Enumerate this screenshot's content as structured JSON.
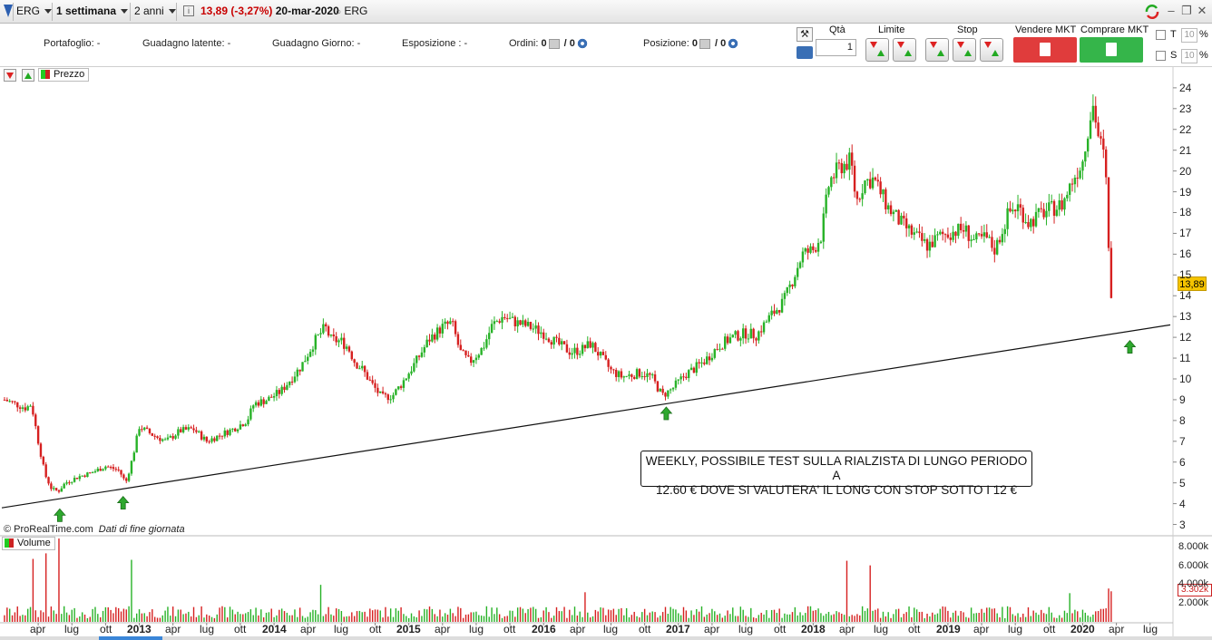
{
  "toolbar": {
    "ticker": "ERG",
    "period": "1 settimana",
    "range": "2 anni",
    "price": "13,89",
    "change": "(-3,27%)",
    "date": "20-mar-2020",
    "instrument": "ERG",
    "icons": [
      "window-icon",
      "info-icon",
      "refresh-icon",
      "minimize-icon",
      "restore-icon",
      "close-icon"
    ]
  },
  "info": {
    "portfolio_label": "Portafoglio:",
    "portfolio_value": "-",
    "latent_label": "Guadagno latente:",
    "latent_value": "-",
    "day_label": "Guadagno Giorno:",
    "day_value": "-",
    "exposure_label": "Esposizione :",
    "exposure_value": "-",
    "orders_label": "Ordini:",
    "orders_a": "0",
    "orders_b": "/ 0",
    "position_label": "Posizione:",
    "position_a": "0",
    "position_b": "/ 0"
  },
  "trading": {
    "qty_label": "Qtà",
    "qty_value": "1",
    "limit_label": "Limite",
    "stop_label": "Stop",
    "sell_label": "Vendere MKT",
    "buy_label": "Comprare MKT",
    "check_t": "T",
    "check_s": "S",
    "pct_value": "10",
    "pct_symbol": "%",
    "sell_color": "#e03c3c",
    "buy_color": "#35b54a"
  },
  "panels": {
    "price_label": "Prezzo",
    "volume_label": "Volume",
    "copyright": "© ProRealTime.com",
    "eod": "Dati di fine giornata",
    "last_price": "13,89",
    "last_volume": "3.302k"
  },
  "annotation": {
    "line1": "WEEKLY, POSSIBILE TEST SULLA RIALZISTA DI LUNGO PERIODO A",
    "line2": "12.60 € DOVE SI VALUTERA' IL LONG CON STOP SOTTO I 12 €"
  },
  "chart_data": {
    "type": "candlestick",
    "title": "",
    "frequency": "weekly",
    "ylim": [
      2.5,
      24.3
    ],
    "y_ticks": [
      3,
      4,
      5,
      6,
      7,
      8,
      9,
      10,
      11,
      12,
      13,
      14,
      15,
      16,
      17,
      18,
      19,
      20,
      21,
      22,
      23,
      24
    ],
    "x_ticks": [
      {
        "label": "apr",
        "t": 2012.25,
        "bold": false
      },
      {
        "label": "lug",
        "t": 2012.5,
        "bold": false
      },
      {
        "label": "ott",
        "t": 2012.75,
        "bold": false
      },
      {
        "label": "2013",
        "t": 2013.0,
        "bold": true
      },
      {
        "label": "apr",
        "t": 2013.25,
        "bold": false
      },
      {
        "label": "lug",
        "t": 2013.5,
        "bold": false
      },
      {
        "label": "ott",
        "t": 2013.75,
        "bold": false
      },
      {
        "label": "2014",
        "t": 2014.0,
        "bold": true
      },
      {
        "label": "apr",
        "t": 2014.25,
        "bold": false
      },
      {
        "label": "lug",
        "t": 2014.5,
        "bold": false
      },
      {
        "label": "ott",
        "t": 2014.75,
        "bold": false
      },
      {
        "label": "2015",
        "t": 2015.0,
        "bold": true
      },
      {
        "label": "apr",
        "t": 2015.25,
        "bold": false
      },
      {
        "label": "lug",
        "t": 2015.5,
        "bold": false
      },
      {
        "label": "ott",
        "t": 2015.75,
        "bold": false
      },
      {
        "label": "2016",
        "t": 2016.0,
        "bold": true
      },
      {
        "label": "apr",
        "t": 2016.25,
        "bold": false
      },
      {
        "label": "lug",
        "t": 2016.5,
        "bold": false
      },
      {
        "label": "ott",
        "t": 2016.75,
        "bold": false
      },
      {
        "label": "2017",
        "t": 2017.0,
        "bold": true
      },
      {
        "label": "apr",
        "t": 2017.25,
        "bold": false
      },
      {
        "label": "lug",
        "t": 2017.5,
        "bold": false
      },
      {
        "label": "ott",
        "t": 2017.75,
        "bold": false
      },
      {
        "label": "2018",
        "t": 2018.0,
        "bold": true
      },
      {
        "label": "apr",
        "t": 2018.25,
        "bold": false
      },
      {
        "label": "lug",
        "t": 2018.5,
        "bold": false
      },
      {
        "label": "ott",
        "t": 2018.75,
        "bold": false
      },
      {
        "label": "2019",
        "t": 2019.0,
        "bold": true
      },
      {
        "label": "apr",
        "t": 2019.25,
        "bold": false
      },
      {
        "label": "lug",
        "t": 2019.5,
        "bold": false
      },
      {
        "label": "ott",
        "t": 2019.75,
        "bold": false
      },
      {
        "label": "2020",
        "t": 2020.0,
        "bold": true
      },
      {
        "label": "apr",
        "t": 2020.25,
        "bold": false
      },
      {
        "label": "lug",
        "t": 2020.5,
        "bold": false
      }
    ],
    "x_range": [
      2011.98,
      2020.67
    ],
    "close_path": [
      [
        2012.0,
        9.0
      ],
      [
        2012.08,
        8.8
      ],
      [
        2012.16,
        8.6
      ],
      [
        2012.2,
        8.8
      ],
      [
        2012.25,
        7.0
      ],
      [
        2012.3,
        5.4
      ],
      [
        2012.35,
        4.7
      ],
      [
        2012.4,
        4.6
      ],
      [
        2012.45,
        5.0
      ],
      [
        2012.55,
        5.3
      ],
      [
        2012.65,
        5.5
      ],
      [
        2012.75,
        5.8
      ],
      [
        2012.85,
        5.6
      ],
      [
        2012.9,
        5.0
      ],
      [
        2012.95,
        6.2
      ],
      [
        2013.0,
        7.7
      ],
      [
        2013.1,
        7.3
      ],
      [
        2013.2,
        7.0
      ],
      [
        2013.3,
        7.5
      ],
      [
        2013.4,
        7.6
      ],
      [
        2013.5,
        7.0
      ],
      [
        2013.6,
        7.3
      ],
      [
        2013.7,
        7.6
      ],
      [
        2013.8,
        8.0
      ],
      [
        2013.85,
        8.8
      ],
      [
        2013.95,
        9.0
      ],
      [
        2014.05,
        9.4
      ],
      [
        2014.15,
        10.2
      ],
      [
        2014.2,
        10.6
      ],
      [
        2014.3,
        11.8
      ],
      [
        2014.38,
        12.5
      ],
      [
        2014.42,
        11.9
      ],
      [
        2014.5,
        11.8
      ],
      [
        2014.55,
        11.5
      ],
      [
        2014.6,
        10.8
      ],
      [
        2014.65,
        10.5
      ],
      [
        2014.72,
        9.8
      ],
      [
        2014.8,
        9.1
      ],
      [
        2014.88,
        9.2
      ],
      [
        2014.95,
        9.8
      ],
      [
        2015.05,
        10.8
      ],
      [
        2015.15,
        11.9
      ],
      [
        2015.25,
        12.5
      ],
      [
        2015.32,
        12.7
      ],
      [
        2015.38,
        11.3
      ],
      [
        2015.45,
        10.8
      ],
      [
        2015.55,
        11.5
      ],
      [
        2015.62,
        12.6
      ],
      [
        2015.7,
        13.0
      ],
      [
        2015.8,
        12.7
      ],
      [
        2015.9,
        12.5
      ],
      [
        2016.0,
        12.2
      ],
      [
        2016.1,
        11.7
      ],
      [
        2016.2,
        11.3
      ],
      [
        2016.28,
        11.4
      ],
      [
        2016.35,
        11.7
      ],
      [
        2016.42,
        11.1
      ],
      [
        2016.5,
        10.4
      ],
      [
        2016.58,
        10.1
      ],
      [
        2016.66,
        10.2
      ],
      [
        2016.72,
        10.3
      ],
      [
        2016.8,
        10.1
      ],
      [
        2016.88,
        9.2
      ],
      [
        2016.95,
        9.5
      ],
      [
        2017.05,
        10.2
      ],
      [
        2017.12,
        10.5
      ],
      [
        2017.2,
        10.9
      ],
      [
        2017.3,
        11.6
      ],
      [
        2017.4,
        12.0
      ],
      [
        2017.5,
        12.2
      ],
      [
        2017.58,
        12.1
      ],
      [
        2017.68,
        13.0
      ],
      [
        2017.78,
        13.7
      ],
      [
        2017.85,
        14.8
      ],
      [
        2017.92,
        16.0
      ],
      [
        2018.0,
        16.2
      ],
      [
        2018.06,
        16.9
      ],
      [
        2018.12,
        19.5
      ],
      [
        2018.2,
        20.2
      ],
      [
        2018.28,
        20.5
      ],
      [
        2018.32,
        18.5
      ],
      [
        2018.38,
        19.5
      ],
      [
        2018.45,
        19.6
      ],
      [
        2018.55,
        18.3
      ],
      [
        2018.65,
        17.5
      ],
      [
        2018.75,
        16.9
      ],
      [
        2018.85,
        16.4
      ],
      [
        2018.95,
        16.9
      ],
      [
        2019.05,
        17.1
      ],
      [
        2019.12,
        17.2
      ],
      [
        2019.2,
        16.6
      ],
      [
        2019.28,
        16.8
      ],
      [
        2019.35,
        16.2
      ],
      [
        2019.45,
        18.0
      ],
      [
        2019.52,
        18.3
      ],
      [
        2019.6,
        17.5
      ],
      [
        2019.7,
        18.0
      ],
      [
        2019.78,
        18.2
      ],
      [
        2019.85,
        18.4
      ],
      [
        2019.92,
        19.5
      ],
      [
        2020.0,
        20.5
      ],
      [
        2020.05,
        22.5
      ],
      [
        2020.08,
        23.2
      ],
      [
        2020.12,
        21.5
      ],
      [
        2020.15,
        21.0
      ],
      [
        2020.18,
        19.0
      ],
      [
        2020.2,
        14.3
      ],
      [
        2020.215,
        13.89
      ]
    ],
    "trendline": {
      "x1": 2011.98,
      "y1": 3.8,
      "x2": 2020.65,
      "y2": 12.6
    },
    "arrows": [
      {
        "t": 2012.41,
        "y": 3.4
      },
      {
        "t": 2012.88,
        "y": 4.0
      },
      {
        "t": 2016.91,
        "y": 8.3
      },
      {
        "t": 2020.35,
        "y": 11.5
      }
    ],
    "volume_ticks": [
      {
        "label": "8.000k",
        "v": 8000
      },
      {
        "label": "6.000k",
        "v": 6000
      },
      {
        "label": "4.000k",
        "v": 4000
      },
      {
        "label": "2.000k",
        "v": 2000
      }
    ],
    "volume_max": 9200,
    "volume_spikes": [
      {
        "t": 2012.22,
        "v": 6800
      },
      {
        "t": 2012.3,
        "v": 7400
      },
      {
        "t": 2012.41,
        "v": 9000
      },
      {
        "t": 2012.94,
        "v": 6700
      },
      {
        "t": 2014.35,
        "v": 4000
      },
      {
        "t": 2016.3,
        "v": 3200
      },
      {
        "t": 2018.25,
        "v": 6600
      },
      {
        "t": 2018.42,
        "v": 6100
      },
      {
        "t": 2019.9,
        "v": 3100
      },
      {
        "t": 2020.2,
        "v": 3600
      },
      {
        "t": 2020.215,
        "v": 3302
      }
    ],
    "up_color": "#27b227",
    "down_color": "#d62020"
  }
}
